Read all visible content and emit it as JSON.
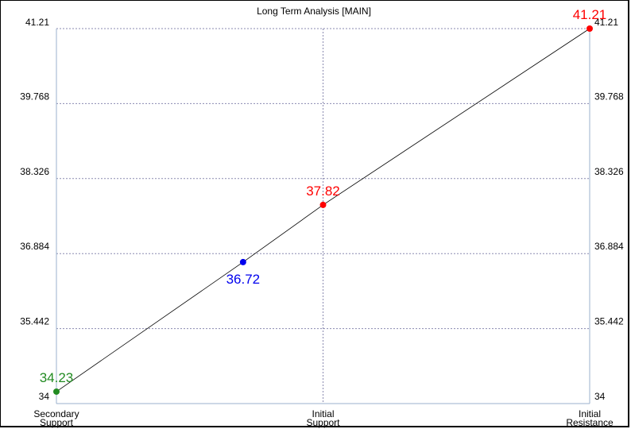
{
  "chart_data": {
    "type": "line",
    "title": "Long Term Analysis [MAIN]",
    "ylim": [
      34,
      41.21
    ],
    "y_ticks": [
      "41.21",
      "39.768",
      "38.326",
      "36.884",
      "35.442",
      "34"
    ],
    "y_tick_values": [
      41.21,
      39.768,
      38.326,
      36.884,
      35.442,
      34
    ],
    "x_ticks": [
      {
        "line1": "Secondary",
        "line2": "Support",
        "x": 0
      },
      {
        "line1": "Initial",
        "line2": "Support",
        "x": 1
      },
      {
        "line1": "Initial",
        "line2": "Resistance",
        "x": 2
      }
    ],
    "grid": true,
    "line_color": "#000000",
    "points": [
      {
        "x": 0,
        "y": 34.23,
        "label": "34.23",
        "color": "#228B22",
        "label_pos": "above"
      },
      {
        "x": 0.7,
        "y": 36.72,
        "label": "36.72",
        "color": "#0000EE",
        "label_pos": "below"
      },
      {
        "x": 1,
        "y": 37.82,
        "label": "37.82",
        "color": "#FF0000",
        "label_pos": "above"
      },
      {
        "x": 2,
        "y": 41.21,
        "label": "41.21",
        "color": "#FF0000",
        "label_pos": "above"
      }
    ]
  }
}
